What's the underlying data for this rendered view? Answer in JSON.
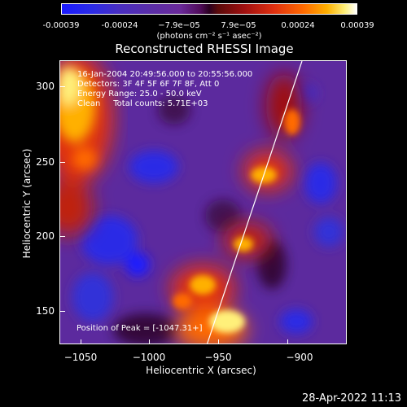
{
  "colorbar": {
    "ticks": [
      "-0.00039",
      "-0.00024",
      "−7.9e−05",
      "7.9e−05",
      "0.00024",
      "0.00039"
    ],
    "unit": "(photons cm⁻² s⁻¹ asec⁻²)"
  },
  "title": "Reconstructed RHESSI Image",
  "info": {
    "line1": "16-Jan-2004 20:49:56.000 to 20:55:56.000",
    "line2": "Detectors: 3F 4F 5F 6F 7F 8F, Att 0",
    "line3": "Energy Range: 25.0 - 50.0 keV",
    "line4": "Clean     Total counts: 5.71E+03"
  },
  "peak": "Position of Peak = [-1047.31+]",
  "xaxis": {
    "label": "Heliocentric X (arcsec)",
    "ticks": [
      "−1050",
      "−1000",
      "−950",
      "−900"
    ]
  },
  "yaxis": {
    "label": "Heliocentric Y (arcsec)",
    "ticks": [
      "300",
      "250",
      "200",
      "150"
    ]
  },
  "timestamp": "28-Apr-2022 11:13",
  "colors": {
    "negative_strong": "#1a1aff",
    "negative": "#5a2ea8",
    "zero": "#2a0020",
    "positive": "#e03010",
    "positive_strong": "#fff07a"
  }
}
